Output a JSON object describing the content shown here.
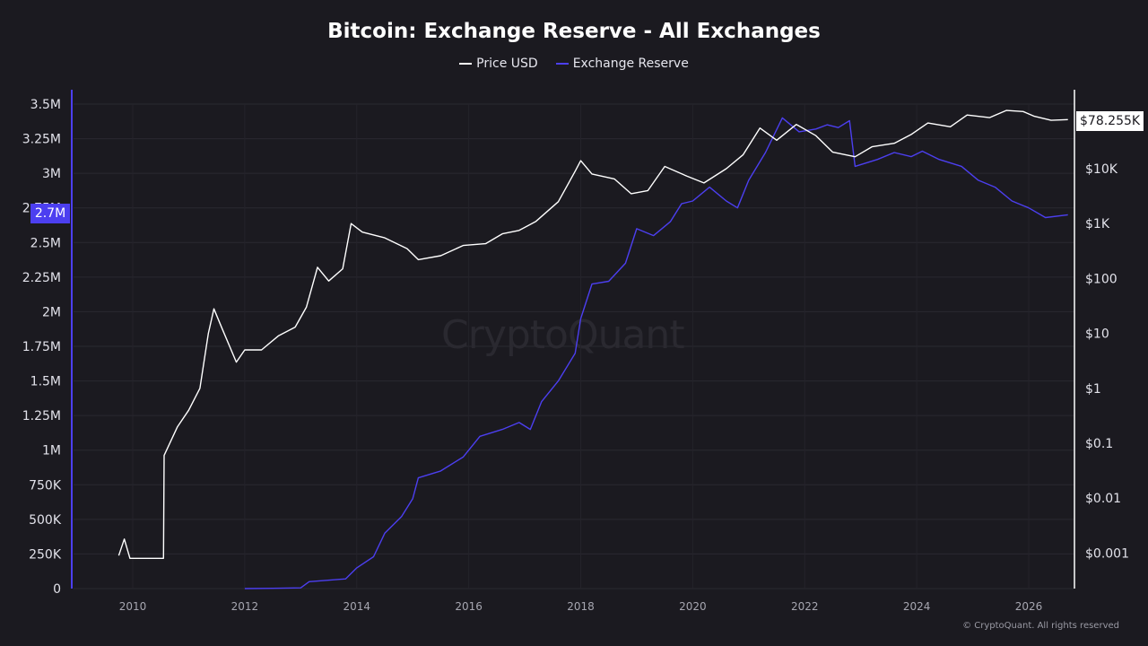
{
  "title": "Bitcoin: Exchange Reserve - All Exchanges",
  "legend": [
    {
      "label": "Price USD",
      "color": "#ffffff"
    },
    {
      "label": "Exchange Reserve",
      "color": "#4c3ff0"
    }
  ],
  "watermark": "CryptoQuant",
  "copyright": "© CryptoQuant. All rights reserved",
  "badges": {
    "reserve_current": "2.7M",
    "price_current": "$78.255K"
  },
  "chart_data": {
    "type": "line",
    "title": "Bitcoin: Exchange Reserve - All Exchanges",
    "x_ticks": [
      "2010",
      "2012",
      "2014",
      "2016",
      "2018",
      "2020",
      "2022",
      "2024",
      "2026"
    ],
    "left_axis": {
      "series": "Exchange Reserve",
      "ticks": [
        "0",
        "250K",
        "500K",
        "750K",
        "1M",
        "1.25M",
        "1.5M",
        "1.75M",
        "2M",
        "2.25M",
        "2.5M",
        "2.75M",
        "3M",
        "3.25M",
        "3.5M"
      ],
      "range": [
        0,
        3500000
      ]
    },
    "right_axis": {
      "series": "Price USD",
      "scale": "log",
      "ticks": [
        "$0.001",
        "$0.01",
        "$0.1",
        "$1",
        "$10",
        "$100",
        "$1K",
        "$10K"
      ],
      "range": [
        0.0003,
        300000
      ]
    },
    "grid": true,
    "legend_position": "top-center",
    "series": [
      {
        "name": "Exchange Reserve",
        "color": "#4c3ff0",
        "axis": "left",
        "points": [
          [
            2012.0,
            0
          ],
          [
            2012.5,
            2000
          ],
          [
            2013.0,
            5000
          ],
          [
            2013.15,
            50000
          ],
          [
            2013.8,
            70000
          ],
          [
            2014.0,
            150000
          ],
          [
            2014.3,
            230000
          ],
          [
            2014.5,
            400000
          ],
          [
            2014.8,
            520000
          ],
          [
            2015.0,
            650000
          ],
          [
            2015.1,
            800000
          ],
          [
            2015.5,
            850000
          ],
          [
            2015.9,
            950000
          ],
          [
            2016.2,
            1100000
          ],
          [
            2016.6,
            1150000
          ],
          [
            2016.9,
            1200000
          ],
          [
            2017.1,
            1150000
          ],
          [
            2017.3,
            1350000
          ],
          [
            2017.6,
            1500000
          ],
          [
            2017.9,
            1700000
          ],
          [
            2018.0,
            1950000
          ],
          [
            2018.2,
            2200000
          ],
          [
            2018.5,
            2220000
          ],
          [
            2018.8,
            2350000
          ],
          [
            2019.0,
            2600000
          ],
          [
            2019.3,
            2550000
          ],
          [
            2019.6,
            2650000
          ],
          [
            2019.8,
            2780000
          ],
          [
            2020.0,
            2800000
          ],
          [
            2020.3,
            2900000
          ],
          [
            2020.6,
            2800000
          ],
          [
            2020.8,
            2750000
          ],
          [
            2021.0,
            2950000
          ],
          [
            2021.3,
            3150000
          ],
          [
            2021.6,
            3400000
          ],
          [
            2021.9,
            3300000
          ],
          [
            2022.2,
            3320000
          ],
          [
            2022.4,
            3350000
          ],
          [
            2022.6,
            3330000
          ],
          [
            2022.8,
            3380000
          ],
          [
            2022.9,
            3050000
          ],
          [
            2023.3,
            3100000
          ],
          [
            2023.6,
            3150000
          ],
          [
            2023.9,
            3120000
          ],
          [
            2024.1,
            3160000
          ],
          [
            2024.4,
            3100000
          ],
          [
            2024.8,
            3050000
          ],
          [
            2025.1,
            2950000
          ],
          [
            2025.4,
            2900000
          ],
          [
            2025.7,
            2800000
          ],
          [
            2026.0,
            2750000
          ],
          [
            2026.3,
            2680000
          ],
          [
            2026.7,
            2700000
          ]
        ]
      },
      {
        "name": "Price USD",
        "color": "#ffffff",
        "axis": "right",
        "points": [
          [
            2009.75,
            0.0009
          ],
          [
            2009.85,
            0.0018
          ],
          [
            2009.95,
            0.0008
          ],
          [
            2010.55,
            0.0008
          ],
          [
            2010.56,
            0.06
          ],
          [
            2010.8,
            0.2
          ],
          [
            2011.0,
            0.4
          ],
          [
            2011.2,
            1
          ],
          [
            2011.35,
            10
          ],
          [
            2011.45,
            28
          ],
          [
            2011.6,
            12
          ],
          [
            2011.85,
            3
          ],
          [
            2012.0,
            5
          ],
          [
            2012.3,
            5
          ],
          [
            2012.6,
            9
          ],
          [
            2012.9,
            13
          ],
          [
            2013.1,
            30
          ],
          [
            2013.3,
            160
          ],
          [
            2013.5,
            90
          ],
          [
            2013.75,
            150
          ],
          [
            2013.9,
            1000
          ],
          [
            2014.1,
            700
          ],
          [
            2014.5,
            550
          ],
          [
            2014.9,
            350
          ],
          [
            2015.1,
            220
          ],
          [
            2015.5,
            260
          ],
          [
            2015.9,
            400
          ],
          [
            2016.3,
            430
          ],
          [
            2016.6,
            650
          ],
          [
            2016.9,
            750
          ],
          [
            2017.2,
            1100
          ],
          [
            2017.6,
            2500
          ],
          [
            2017.9,
            9000
          ],
          [
            2018.0,
            14000
          ],
          [
            2018.2,
            8000
          ],
          [
            2018.6,
            6500
          ],
          [
            2018.9,
            3500
          ],
          [
            2019.2,
            4000
          ],
          [
            2019.5,
            11000
          ],
          [
            2019.9,
            7300
          ],
          [
            2020.2,
            5500
          ],
          [
            2020.6,
            10000
          ],
          [
            2020.9,
            18000
          ],
          [
            2021.2,
            55000
          ],
          [
            2021.5,
            33000
          ],
          [
            2021.85,
            64000
          ],
          [
            2022.2,
            40000
          ],
          [
            2022.5,
            20000
          ],
          [
            2022.9,
            16500
          ],
          [
            2023.2,
            25000
          ],
          [
            2023.6,
            29000
          ],
          [
            2023.9,
            42000
          ],
          [
            2024.2,
            68000
          ],
          [
            2024.6,
            58000
          ],
          [
            2024.9,
            95000
          ],
          [
            2025.3,
            85000
          ],
          [
            2025.6,
            115000
          ],
          [
            2025.9,
            110000
          ],
          [
            2026.1,
            90000
          ],
          [
            2026.4,
            76000
          ],
          [
            2026.7,
            78255
          ]
        ]
      }
    ]
  }
}
